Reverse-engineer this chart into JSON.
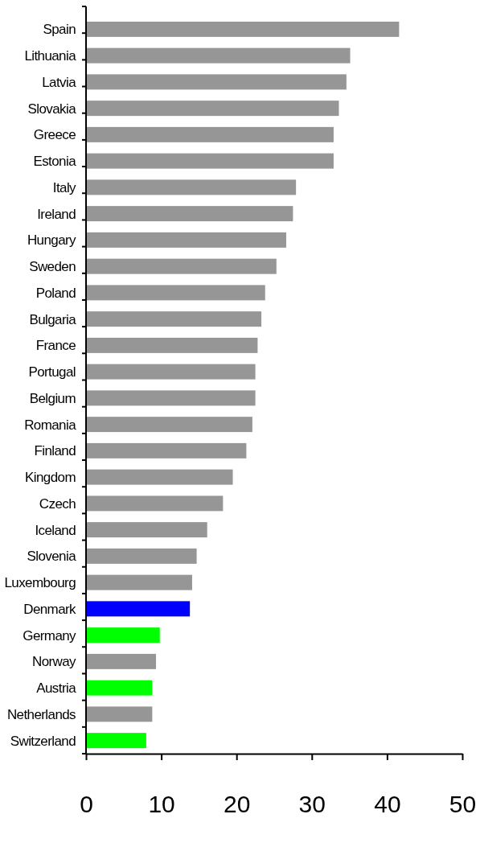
{
  "chart_data": {
    "type": "bar",
    "orientation": "horizontal",
    "categories": [
      "Spain",
      "Lithuania",
      "Latvia",
      "Slovakia",
      "Greece",
      "Estonia",
      "Italy",
      "Ireland",
      "Hungary",
      "Sweden",
      "Poland",
      "Bulgaria",
      "France",
      "Portugal",
      "Belgium",
      "Romania",
      "Finland",
      "Kingdom",
      "Czech",
      "Iceland",
      "Slovenia",
      "Luxembourg",
      "Denmark",
      "Germany",
      "Norway",
      "Austria",
      "Netherlands",
      "Switzerland"
    ],
    "values": [
      41.6,
      35.1,
      34.6,
      33.6,
      32.9,
      32.9,
      27.9,
      27.5,
      26.6,
      25.3,
      23.8,
      23.3,
      22.8,
      22.5,
      22.5,
      22.1,
      21.3,
      19.5,
      18.2,
      16.1,
      14.7,
      14.1,
      13.8,
      9.8,
      9.3,
      8.8,
      8.8,
      8.0
    ],
    "colors": [
      "#969696",
      "#969696",
      "#969696",
      "#969696",
      "#969696",
      "#969696",
      "#969696",
      "#969696",
      "#969696",
      "#969696",
      "#969696",
      "#969696",
      "#969696",
      "#969696",
      "#969696",
      "#969696",
      "#969696",
      "#969696",
      "#969696",
      "#969696",
      "#969696",
      "#969696",
      "#0000ff",
      "#00ff00",
      "#969696",
      "#00ff00",
      "#969696",
      "#00ff00"
    ],
    "xlim": [
      0,
      50
    ],
    "xticks": [
      0,
      10,
      20,
      30,
      40,
      50
    ]
  }
}
